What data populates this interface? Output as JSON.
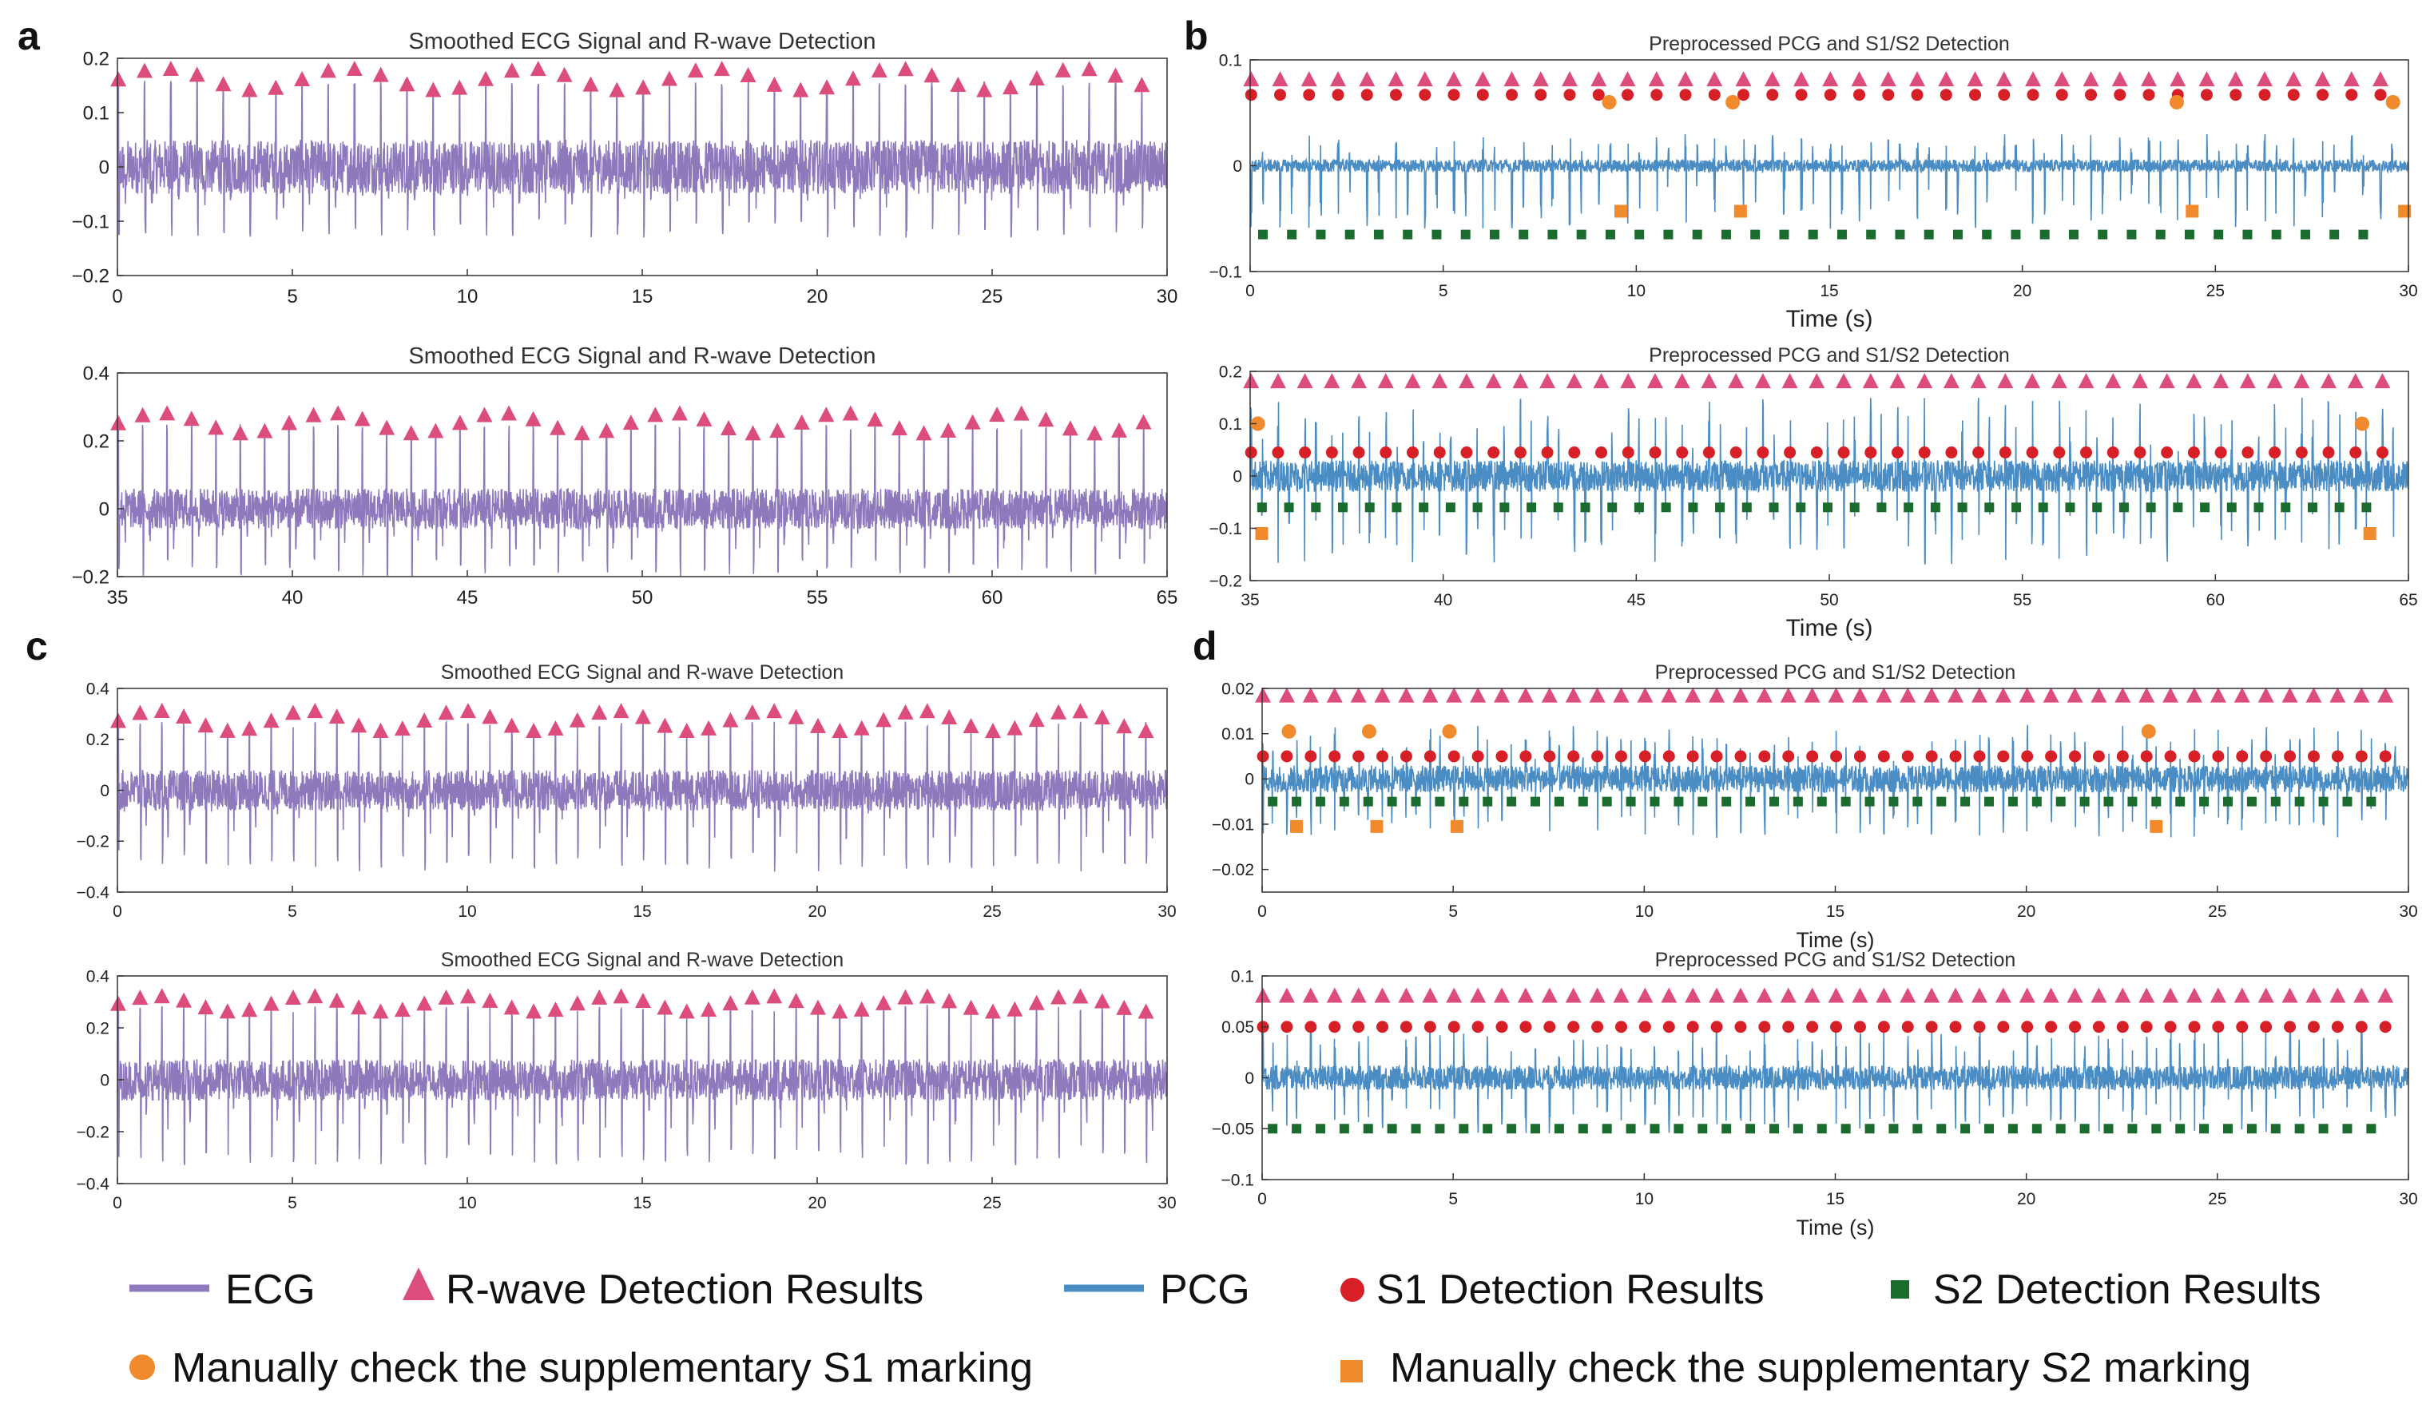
{
  "colors": {
    "ecg": "#8e79bd",
    "pcg": "#4a8cc4",
    "r_wave": "#dd4d7c",
    "s1": "#d61f26",
    "s2": "#1c6b2e",
    "manual_s1": "#f08a2c",
    "manual_s2": "#f08a2c"
  },
  "legend": {
    "ecg": "ECG",
    "r_wave": "R-wave Detection Results",
    "pcg": "PCG",
    "s1": "S1 Detection Results",
    "s2": "S2 Detection Results",
    "manual_s1": "Manually check the supplementary S1 marking",
    "manual_s2": "Manually check the supplementary S2 marking"
  },
  "chart_data": [
    {
      "panel": "a",
      "type": "line",
      "kind": "ecg",
      "title": "Smoothed ECG Signal and R-wave Detection",
      "xlim": [
        0,
        30
      ],
      "ylim": [
        -0.2,
        0.2
      ],
      "xticks": [
        0,
        5,
        10,
        15,
        20,
        25,
        30
      ],
      "yticks": [
        -0.2,
        -0.1,
        0,
        0.1,
        0.2
      ],
      "xtick_labels": [
        "0",
        "5",
        "10",
        "15",
        "20",
        "25",
        "30"
      ],
      "ytick_labels": [
        "−0.2",
        "−0.1",
        "0",
        "0.1",
        "0.2"
      ],
      "xlabel": "",
      "r_wave_count": 40,
      "r_wave_level": 0.16,
      "r_wave_variation": 0.02,
      "baseline_amp": 0.05,
      "spike_low": -0.13
    },
    {
      "panel": "a",
      "type": "line",
      "kind": "pcg",
      "title": "Preprocessed PCG and S1/S2 Detection",
      "xlim": [
        0,
        30
      ],
      "ylim": [
        -0.1,
        0.1
      ],
      "xticks": [
        0,
        5,
        10,
        15,
        20,
        25,
        30
      ],
      "yticks": [
        -0.1,
        0,
        0.1
      ],
      "xtick_labels": [
        "0",
        "5",
        "10",
        "15",
        "20",
        "25",
        "30"
      ],
      "ytick_labels": [
        "−0.1",
        "0",
        "0.1"
      ],
      "xlabel": "Time  (s)",
      "r_wave_count": 40,
      "r_wave_level": 0.081,
      "s1_level": 0.067,
      "s2_level": -0.065,
      "manual_s1": [
        [
          9.3,
          0.06
        ],
        [
          12.5,
          0.06
        ],
        [
          24.0,
          0.06
        ],
        [
          29.6,
          0.06
        ]
      ],
      "manual_s2": [
        [
          9.6,
          -0.043
        ],
        [
          12.7,
          -0.043
        ],
        [
          24.4,
          -0.043
        ],
        [
          29.9,
          -0.043
        ]
      ],
      "baseline_amp": 0.006,
      "spike_low": -0.06,
      "spike_high": 0.03
    },
    {
      "panel": "b",
      "type": "line",
      "kind": "ecg",
      "title": "Smoothed ECG Signal and R-wave Detection",
      "xlim": [
        35,
        65
      ],
      "ylim": [
        -0.2,
        0.4
      ],
      "xticks": [
        35,
        40,
        45,
        50,
        55,
        60,
        65
      ],
      "yticks": [
        -0.2,
        0,
        0.2,
        0.4
      ],
      "xtick_labels": [
        "35",
        "40",
        "45",
        "50",
        "55",
        "60",
        "65"
      ],
      "ytick_labels": [
        "−0.2",
        "0",
        "0.2",
        "0.4"
      ],
      "xlabel": "",
      "r_wave_count": 43,
      "r_wave_level": 0.25,
      "r_wave_variation": 0.03,
      "baseline_amp": 0.06,
      "spike_low": -0.2
    },
    {
      "panel": "b",
      "type": "line",
      "kind": "pcg",
      "title": "Preprocessed PCG and S1/S2 Detection",
      "xlim": [
        35,
        65
      ],
      "ylim": [
        -0.2,
        0.2
      ],
      "xticks": [
        35,
        40,
        45,
        50,
        55,
        60,
        65
      ],
      "yticks": [
        -0.2,
        -0.1,
        0,
        0.1,
        0.2
      ],
      "xtick_labels": [
        "35",
        "40",
        "45",
        "50",
        "55",
        "60",
        "65"
      ],
      "ytick_labels": [
        "−0.2",
        "−0.1",
        "0",
        "0.1",
        "0.2"
      ],
      "xlabel": "Time  (s)",
      "r_wave_count": 43,
      "r_wave_level": 0.18,
      "s1_level": 0.045,
      "s2_level": -0.06,
      "manual_s1": [
        [
          35.2,
          0.1
        ],
        [
          63.8,
          0.1
        ]
      ],
      "manual_s2": [
        [
          35.3,
          -0.11
        ],
        [
          64.0,
          -0.11
        ]
      ],
      "baseline_amp": 0.03,
      "spike_low": -0.17,
      "spike_high": 0.15
    },
    {
      "panel": "c",
      "type": "line",
      "kind": "ecg",
      "title": "Smoothed ECG Signal and R-wave Detection",
      "xlim": [
        0,
        30
      ],
      "ylim": [
        -0.4,
        0.4
      ],
      "xticks": [
        0,
        5,
        10,
        15,
        20,
        25,
        30
      ],
      "yticks": [
        -0.4,
        -0.2,
        0,
        0.2,
        0.4
      ],
      "xtick_labels": [
        "0",
        "5",
        "10",
        "15",
        "20",
        "25",
        "30"
      ],
      "ytick_labels": [
        "−0.4",
        "−0.2",
        "0",
        "0.2",
        "0.4"
      ],
      "xlabel": "",
      "r_wave_count": 48,
      "r_wave_level": 0.27,
      "r_wave_variation": 0.04,
      "baseline_amp": 0.08,
      "spike_low": -0.32
    },
    {
      "panel": "c",
      "type": "line",
      "kind": "pcg",
      "title": "Preprocessed PCG and S1/S2 Detection",
      "xlim": [
        0,
        30
      ],
      "ylim": [
        -0.025,
        0.02
      ],
      "xticks": [
        0,
        5,
        10,
        15,
        20,
        25,
        30
      ],
      "yticks": [
        -0.02,
        -0.01,
        0,
        0.01,
        0.02
      ],
      "xtick_labels": [
        "0",
        "5",
        "10",
        "15",
        "20",
        "25",
        "30"
      ],
      "ytick_labels": [
        "−0.02",
        "−0.01",
        "0",
        "0.01",
        "0.02"
      ],
      "xlabel": "Time  (s)",
      "r_wave_count": 48,
      "r_wave_level": 0.0183,
      "s1_level": 0.005,
      "s2_level": -0.005,
      "manual_s1": [
        [
          0.7,
          0.0105
        ],
        [
          2.8,
          0.0105
        ],
        [
          4.9,
          0.0105
        ],
        [
          23.2,
          0.0105
        ]
      ],
      "manual_s2": [
        [
          0.9,
          -0.0105
        ],
        [
          3.0,
          -0.0105
        ],
        [
          5.1,
          -0.0105
        ],
        [
          23.4,
          -0.0105
        ]
      ],
      "baseline_amp": 0.003,
      "spike_low": -0.013,
      "spike_high": 0.012
    },
    {
      "panel": "d",
      "type": "line",
      "kind": "ecg",
      "title": "Smoothed ECG Signal and R-wave Detection",
      "xlim": [
        0,
        30
      ],
      "ylim": [
        -0.4,
        0.4
      ],
      "xticks": [
        0,
        5,
        10,
        15,
        20,
        25,
        30
      ],
      "yticks": [
        -0.4,
        -0.2,
        0,
        0.2,
        0.4
      ],
      "xtick_labels": [
        "0",
        "5",
        "10",
        "15",
        "20",
        "25",
        "30"
      ],
      "ytick_labels": [
        "−0.4",
        "−0.2",
        "0",
        "0.2",
        "0.4"
      ],
      "xlabel": "",
      "r_wave_count": 48,
      "r_wave_level": 0.29,
      "r_wave_variation": 0.03,
      "baseline_amp": 0.08,
      "spike_low": -0.33
    },
    {
      "panel": "d",
      "type": "line",
      "kind": "pcg",
      "title": "Preprocessed PCG and S1/S2 Detection",
      "xlim": [
        0,
        30
      ],
      "ylim": [
        -0.1,
        0.1
      ],
      "xticks": [
        0,
        5,
        10,
        15,
        20,
        25,
        30
      ],
      "yticks": [
        -0.1,
        -0.05,
        0,
        0.05,
        0.1
      ],
      "xtick_labels": [
        "0",
        "5",
        "10",
        "15",
        "20",
        "25",
        "30"
      ],
      "ytick_labels": [
        "−0.1",
        "−0.05",
        "0",
        "0.05",
        "0.1"
      ],
      "xlabel": "Time  (s)",
      "r_wave_count": 48,
      "r_wave_level": 0.08,
      "s1_level": 0.05,
      "s2_level": -0.05,
      "manual_s1": [],
      "manual_s2": [],
      "baseline_amp": 0.012,
      "spike_low": -0.055,
      "spike_high": 0.055
    }
  ]
}
